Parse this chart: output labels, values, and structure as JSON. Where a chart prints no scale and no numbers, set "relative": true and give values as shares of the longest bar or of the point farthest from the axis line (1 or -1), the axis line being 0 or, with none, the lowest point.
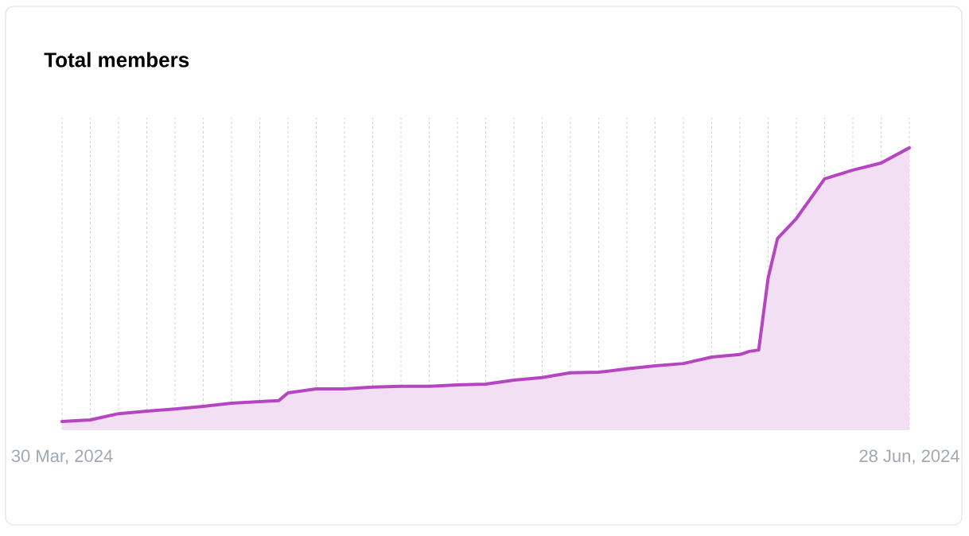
{
  "chart_data": {
    "type": "area",
    "title": "Total members",
    "relative": true,
    "color": "#b545c0",
    "grid": "x",
    "line_style": "solid",
    "x": [
      "2024-03-30",
      "2024-04-02",
      "2024-04-05",
      "2024-04-08",
      "2024-04-11",
      "2024-04-14",
      "2024-04-17",
      "2024-04-20",
      "2024-04-22",
      "2024-04-23",
      "2024-04-26",
      "2024-04-29",
      "2024-05-02",
      "2024-05-05",
      "2024-05-08",
      "2024-05-11",
      "2024-05-14",
      "2024-05-17",
      "2024-05-20",
      "2024-05-23",
      "2024-05-26",
      "2024-05-29",
      "2024-06-01",
      "2024-06-04",
      "2024-06-07",
      "2024-06-10",
      "2024-06-11",
      "2024-06-12",
      "2024-06-13",
      "2024-06-14",
      "2024-06-16",
      "2024-06-19",
      "2024-06-22",
      "2024-06-25",
      "2024-06-28"
    ],
    "values": [
      0.028,
      0.034,
      0.056,
      0.065,
      0.073,
      0.082,
      0.093,
      0.099,
      0.102,
      0.13,
      0.144,
      0.144,
      0.15,
      0.153,
      0.153,
      0.158,
      0.161,
      0.175,
      0.184,
      0.201,
      0.203,
      0.215,
      0.226,
      0.234,
      0.257,
      0.266,
      0.277,
      0.282,
      0.537,
      0.678,
      0.749,
      0.89,
      0.921,
      0.946,
      1
    ],
    "xlim": [
      "2024-03-30",
      "2024-06-28"
    ],
    "xticks": [
      {
        "value": "2024-03-30",
        "label": "30 Mar, 2024"
      },
      {
        "value": "2024-04-02",
        "label": null
      },
      {
        "value": "2024-04-05",
        "label": null
      },
      {
        "value": "2024-04-08",
        "label": null
      },
      {
        "value": "2024-04-11",
        "label": null
      },
      {
        "value": "2024-04-14",
        "label": null
      },
      {
        "value": "2024-04-17",
        "label": null
      },
      {
        "value": "2024-04-20",
        "label": null
      },
      {
        "value": "2024-04-23",
        "label": null
      },
      {
        "value": "2024-04-26",
        "label": null
      },
      {
        "value": "2024-04-29",
        "label": null
      },
      {
        "value": "2024-05-02",
        "label": null
      },
      {
        "value": "2024-05-05",
        "label": null
      },
      {
        "value": "2024-05-08",
        "label": null
      },
      {
        "value": "2024-05-11",
        "label": null
      },
      {
        "value": "2024-05-14",
        "label": null
      },
      {
        "value": "2024-05-17",
        "label": null
      },
      {
        "value": "2024-05-20",
        "label": null
      },
      {
        "value": "2024-05-23",
        "label": null
      },
      {
        "value": "2024-05-26",
        "label": null
      },
      {
        "value": "2024-05-29",
        "label": null
      },
      {
        "value": "2024-06-01",
        "label": null
      },
      {
        "value": "2024-06-04",
        "label": null
      },
      {
        "value": "2024-06-07",
        "label": null
      },
      {
        "value": "2024-06-10",
        "label": null
      },
      {
        "value": "2024-06-13",
        "label": null
      },
      {
        "value": "2024-06-16",
        "label": null
      },
      {
        "value": "2024-06-19",
        "label": null
      },
      {
        "value": "2024-06-22",
        "label": null
      },
      {
        "value": "2024-06-25",
        "label": null
      },
      {
        "value": "2024-06-28",
        "label": "28 Jun, 2024"
      }
    ]
  }
}
